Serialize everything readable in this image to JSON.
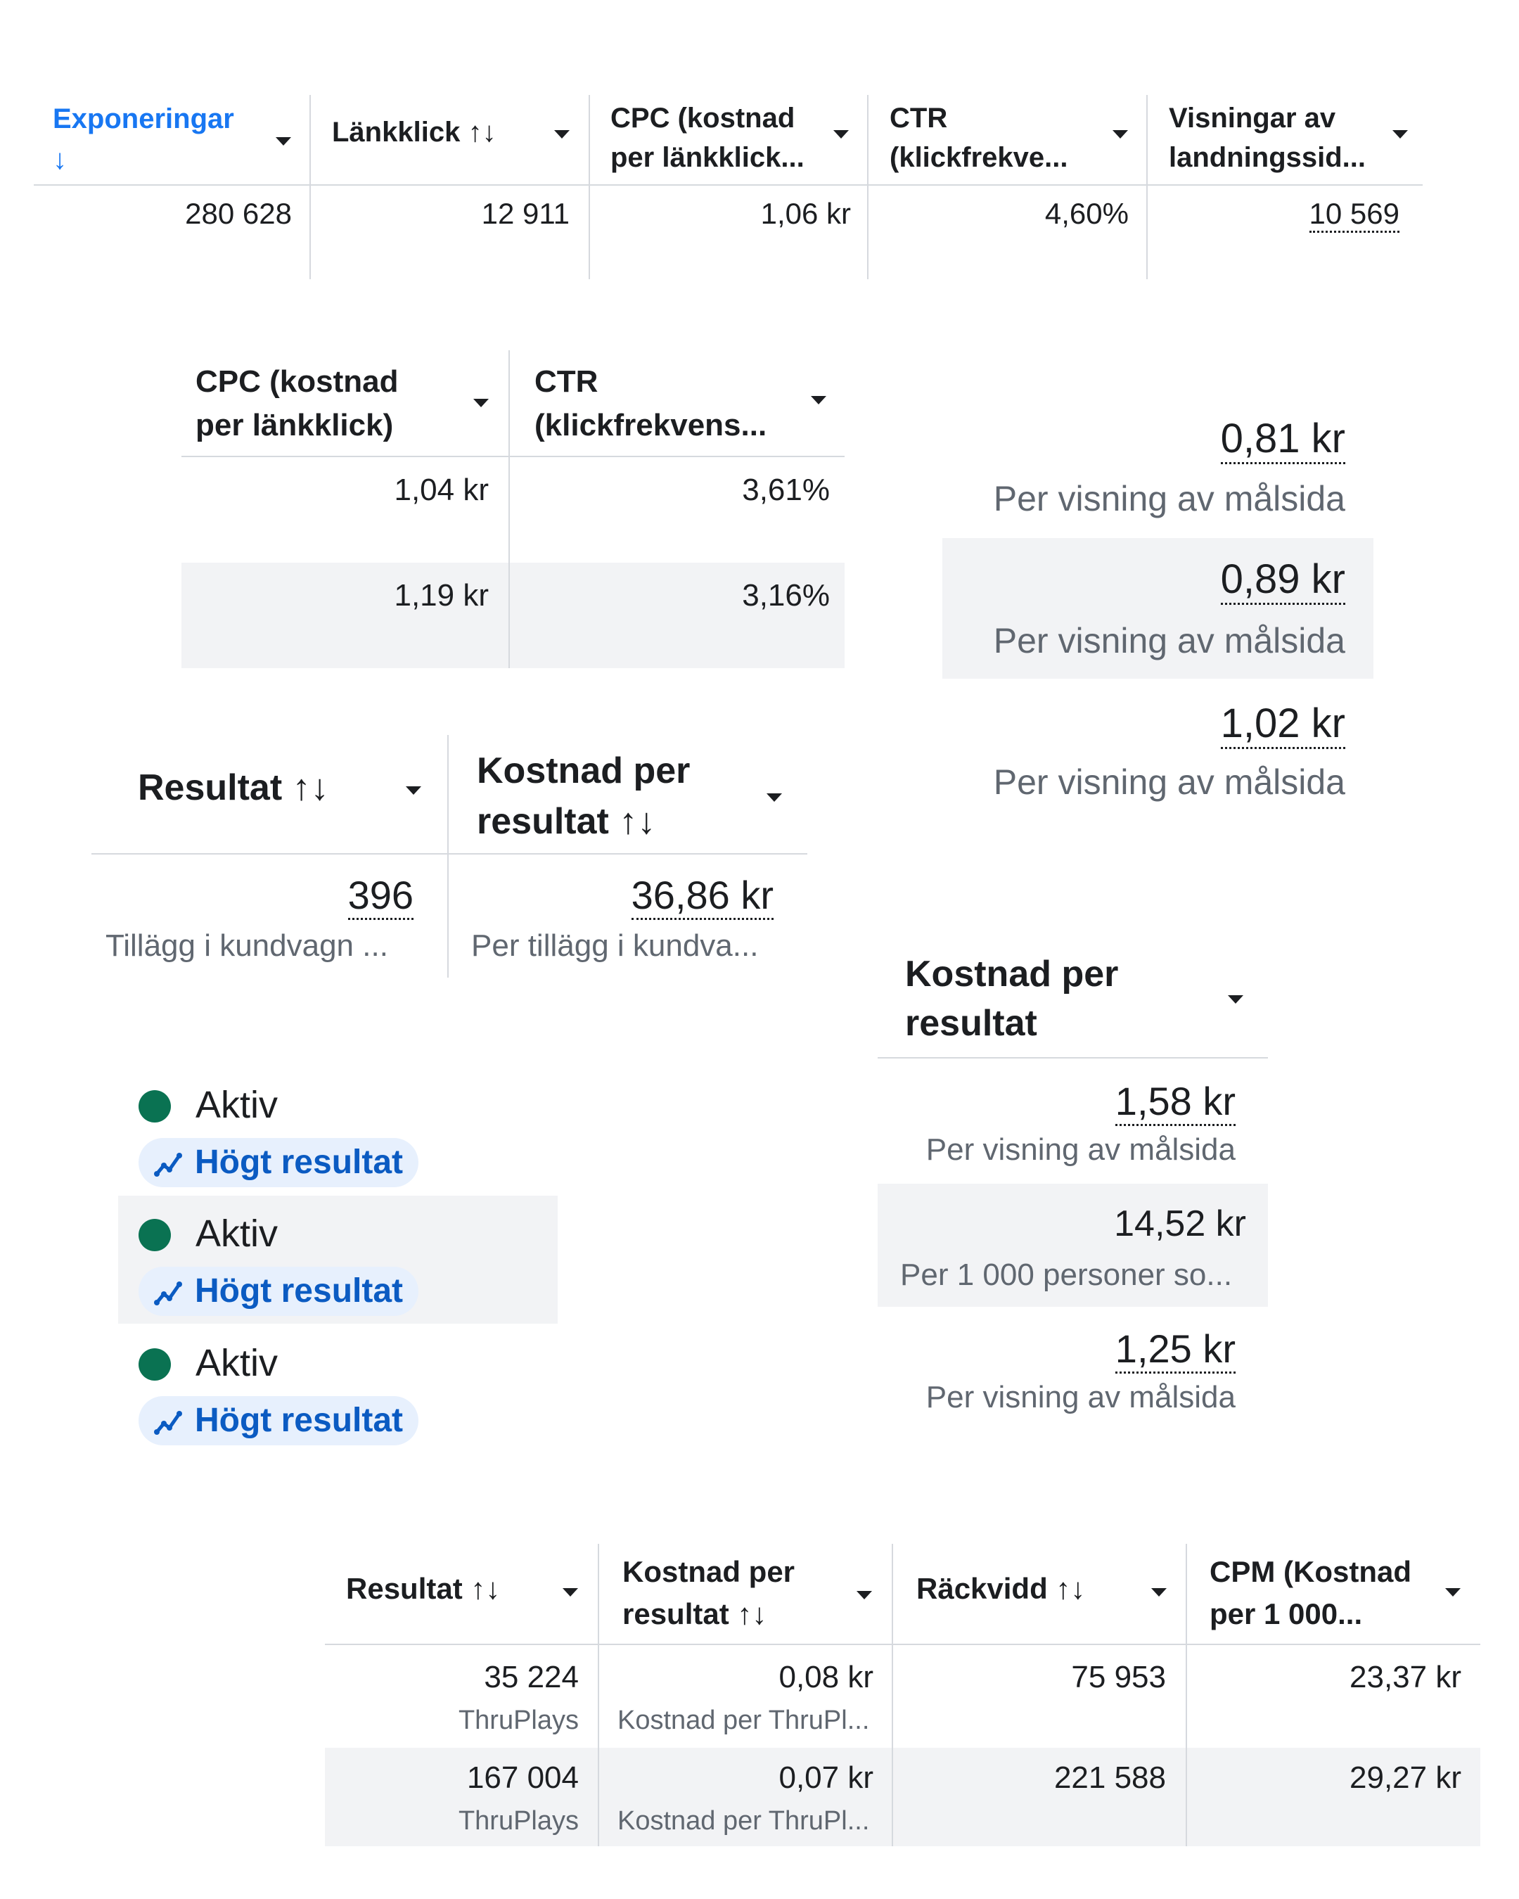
{
  "table1": {
    "headers": {
      "impressions": [
        "Exponeringar",
        "↓"
      ],
      "link_clicks": "Länkklick",
      "cpc": [
        "CPC (kostnad",
        "per länkklick..."
      ],
      "ctr": [
        "CTR",
        "(klickfrekve..."
      ],
      "landing_views": [
        "Visningar av",
        "landningssid..."
      ]
    },
    "sort_icon": "↑↓",
    "row": {
      "impressions": "280 628",
      "link_clicks": "12 911",
      "cpc": "1,06 kr",
      "ctr": "4,60%",
      "landing_views": "10 569"
    }
  },
  "table2": {
    "headers": {
      "cpc": [
        "CPC (kostnad",
        "per länkklick)"
      ],
      "ctr": [
        "CTR",
        "(klickfrekvens..."
      ]
    },
    "rows": [
      {
        "cpc": "1,04 kr",
        "ctr": "3,61%"
      },
      {
        "cpc": "1,19 kr",
        "ctr": "3,16%"
      }
    ]
  },
  "cost_list_right": [
    {
      "value": "0,81 kr",
      "label": "Per visning av målsida"
    },
    {
      "value": "0,89 kr",
      "label": "Per visning av målsida"
    },
    {
      "value": "1,02 kr",
      "label": "Per visning av målsida"
    }
  ],
  "table3": {
    "headers": {
      "result": "Resultat",
      "cost_per_result": [
        "Kostnad per",
        "resultat"
      ]
    },
    "sort_icon": "↑↓",
    "row": {
      "result": "396",
      "result_sub": "Tillägg i kundvagn ...",
      "cost": "36,86 kr",
      "cost_sub": "Per tillägg i kundva..."
    }
  },
  "table4": {
    "header": [
      "Kostnad per",
      "resultat"
    ],
    "rows": [
      {
        "value": "1,58 kr",
        "label": "Per visning av målsida"
      },
      {
        "value": "14,52 kr",
        "label": "Per 1 000 personer so..."
      },
      {
        "value": "1,25 kr",
        "label": "Per visning av målsida"
      }
    ]
  },
  "status_list": [
    {
      "status": "Aktiv",
      "badge": "Högt resultat"
    },
    {
      "status": "Aktiv",
      "badge": "Högt resultat"
    },
    {
      "status": "Aktiv",
      "badge": "Högt resultat"
    }
  ],
  "table5": {
    "headers": {
      "result": "Resultat",
      "cost_per_result": [
        "Kostnad per",
        "resultat"
      ],
      "reach": "Räckvidd",
      "cpm": [
        "CPM (Kostnad",
        "per 1 000..."
      ]
    },
    "sort_icon": "↑↓",
    "rows": [
      {
        "result": "35 224",
        "result_sub": "ThruPlays",
        "cost": "0,08 kr",
        "cost_sub": "Kostnad per ThruPl...",
        "reach": "75 953",
        "cpm": "23,37 kr"
      },
      {
        "result": "167 004",
        "result_sub": "ThruPlays",
        "cost": "0,07 kr",
        "cost_sub": "Kostnad per ThruPl...",
        "reach": "221 588",
        "cpm": "29,27 kr"
      }
    ]
  },
  "colors": {
    "accent_blue": "#1877f2",
    "active_green": "#0a7252",
    "badge_bg": "#e7f0fd",
    "badge_text": "#0b5bc2",
    "row_shade": "#f2f3f5"
  }
}
